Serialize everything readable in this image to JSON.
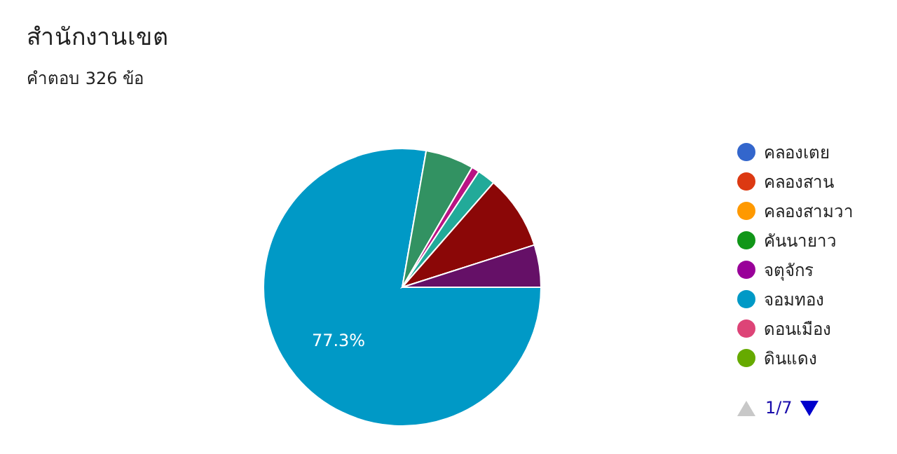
{
  "chart_data": {
    "type": "pie",
    "title": "สำนักงานเขต",
    "subtitle": "คำตอบ 326 ข้อ",
    "categories": [
      "คลองเตย",
      "คลองสาน",
      "คลองสามวา",
      "คันนายาว",
      "จตุจักร",
      "จอมทอง",
      "ดอนเมือง",
      "ดินแดง",
      null,
      null,
      null,
      null,
      null,
      null,
      null
    ],
    "values": [
      null,
      null,
      null,
      null,
      null,
      77.3,
      null,
      null,
      null,
      null,
      5.6,
      0.9,
      2.1,
      8.6,
      4.9
    ],
    "colors": [
      "#3366cc",
      "#dc3912",
      "#ff9900",
      "#109618",
      "#990099",
      "#0099c6",
      "#dd4477",
      "#66aa00",
      null,
      null,
      "#329262",
      "#b91383",
      "#22aa99",
      "#8b0707",
      "#651067"
    ],
    "value_labels": [
      null,
      null,
      null,
      null,
      null,
      "77.3%",
      null,
      null,
      null,
      null,
      null,
      null,
      null,
      null,
      null
    ],
    "legend": "right",
    "annotations": [
      "1/7"
    ]
  }
}
